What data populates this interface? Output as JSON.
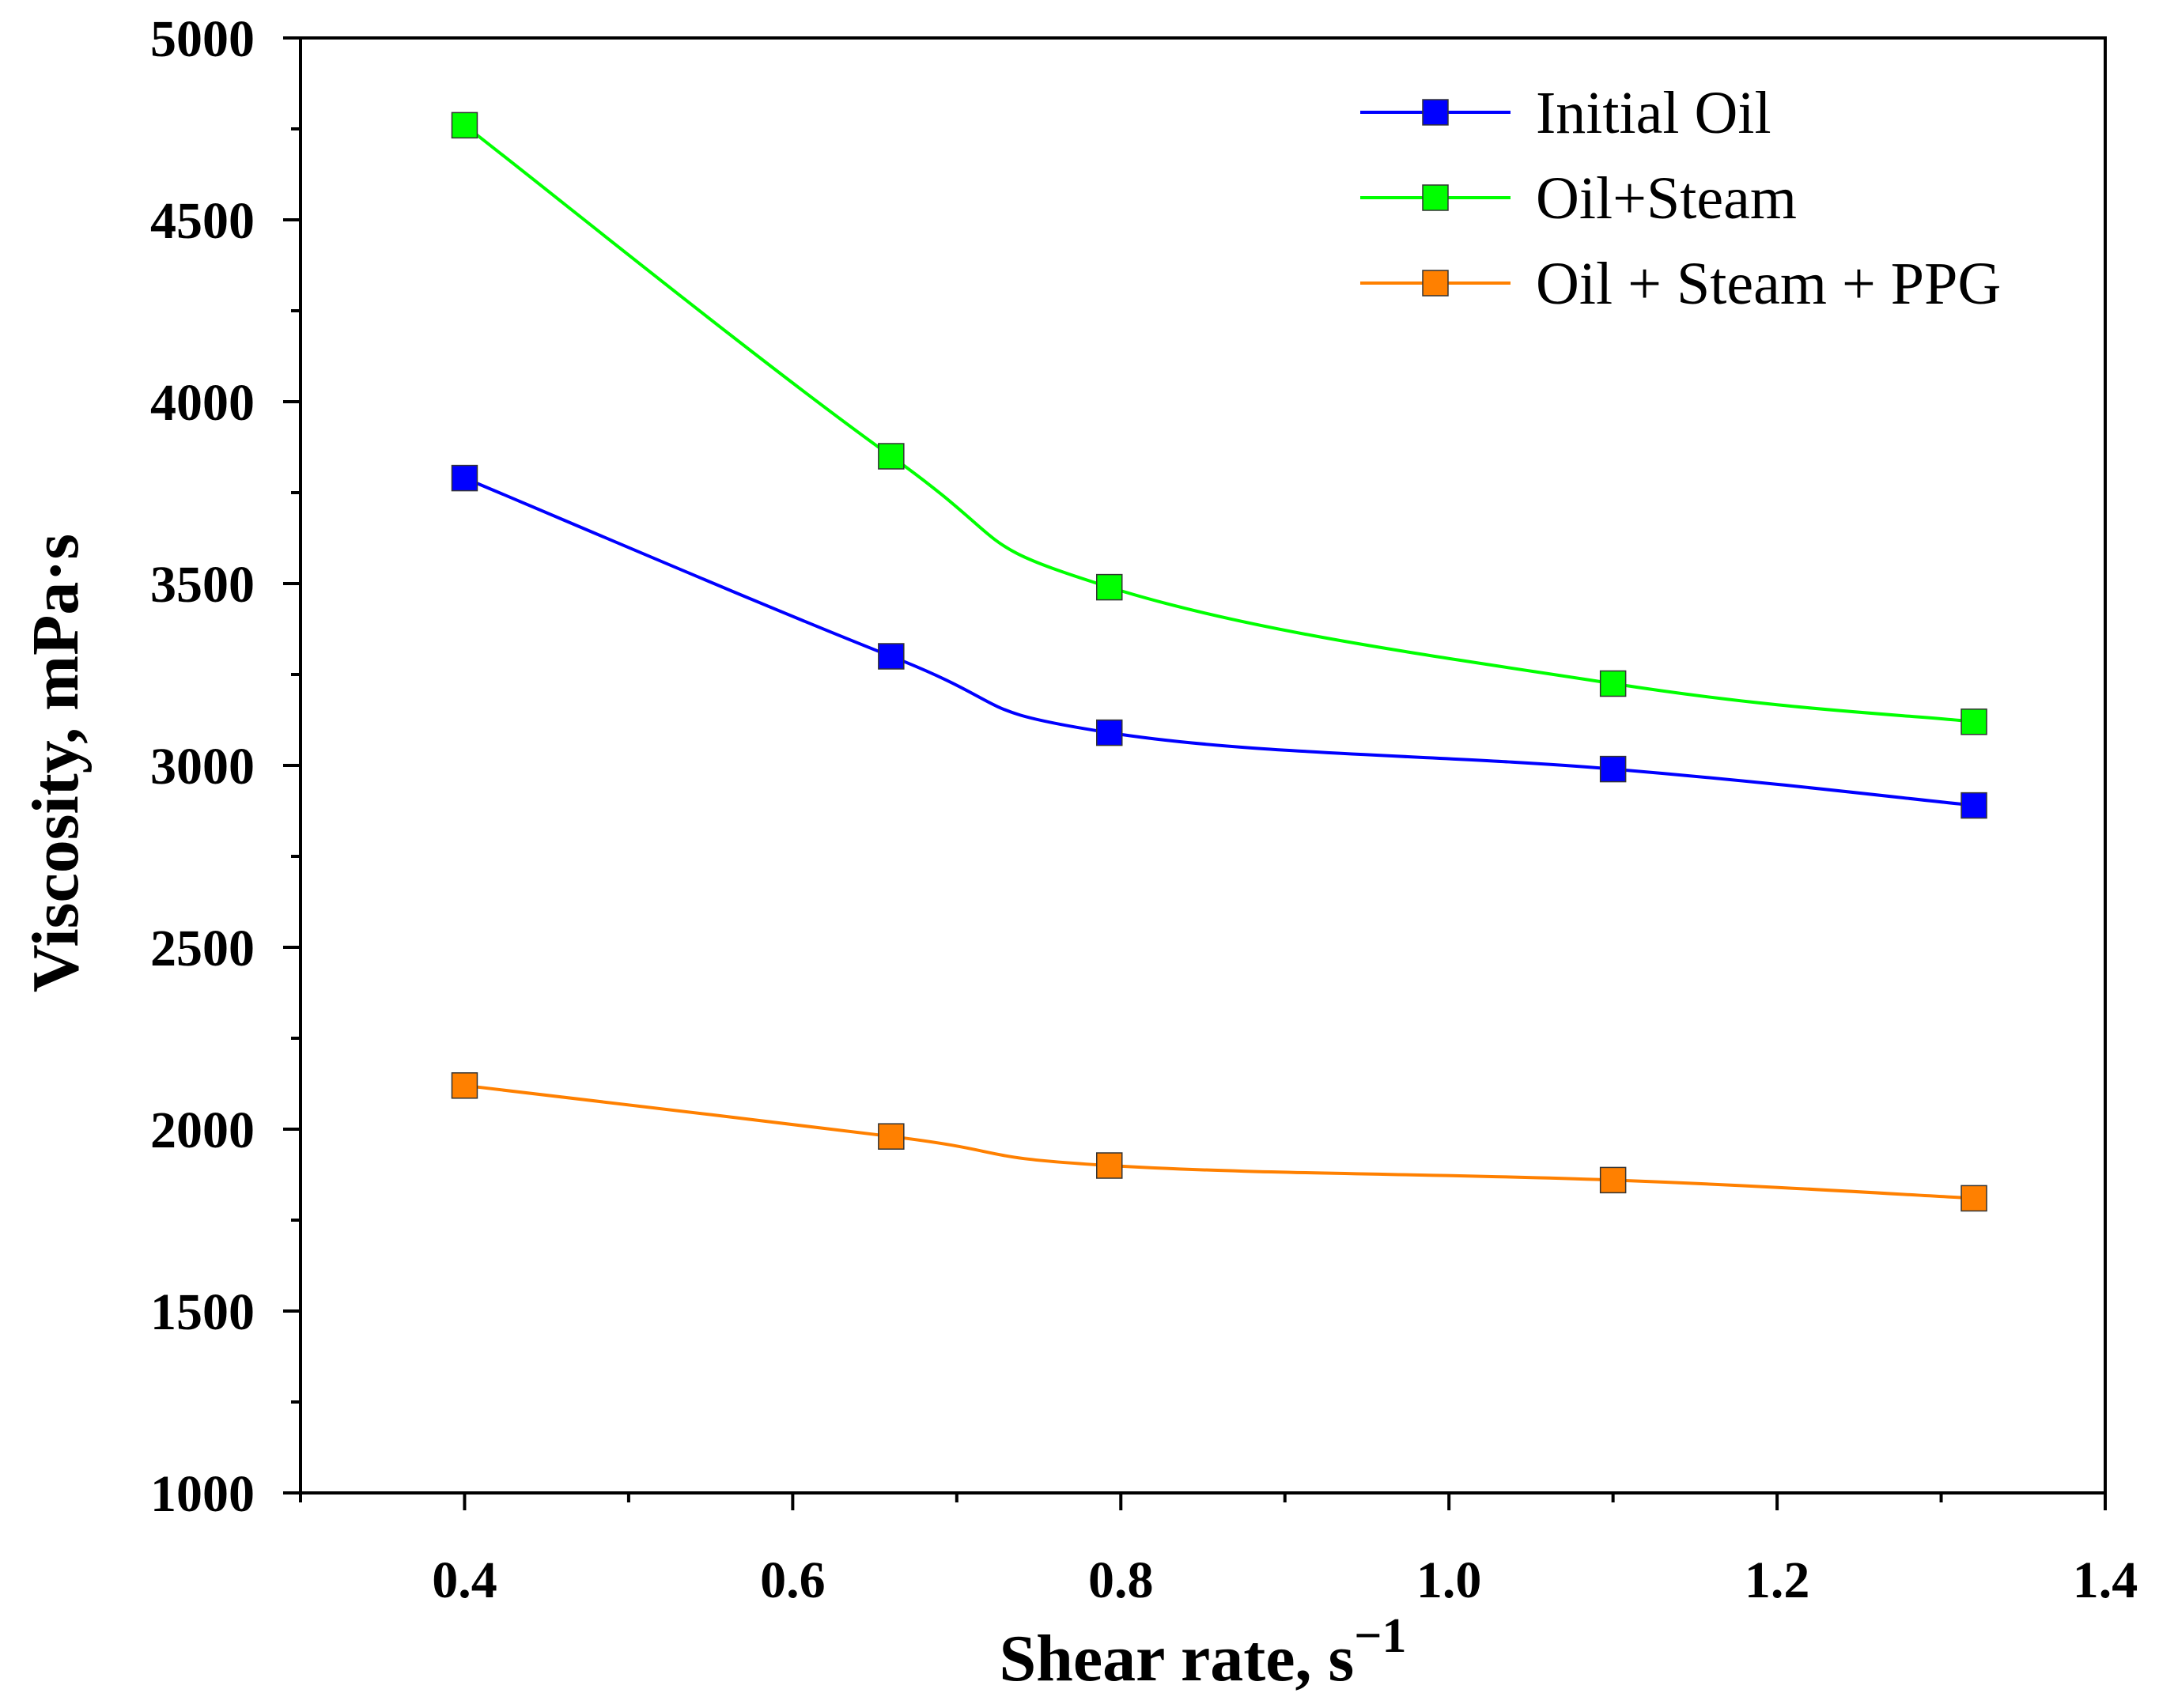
{
  "chart_data": {
    "type": "line",
    "title": "",
    "xlabel": "Shear rate, s",
    "xlabel_superscript": "−1",
    "ylabel": "Viscosity, mPa·s",
    "xlim": [
      0.3,
      1.4
    ],
    "ylim": [
      1000,
      5000
    ],
    "x_ticks": [
      "0.4",
      "0.6",
      "0.8",
      "1.0",
      "1.2",
      "1.4"
    ],
    "y_ticks": [
      "1000",
      "1500",
      "2000",
      "2500",
      "3000",
      "3500",
      "4000",
      "4500",
      "5000"
    ],
    "grid": false,
    "legend_position": "top-right",
    "x": [
      0.4,
      0.66,
      0.793,
      1.1,
      1.32
    ],
    "series": [
      {
        "name": "Initial Oil",
        "color": "#0000FF",
        "values": [
          3790,
          3300,
          3090,
          2990,
          2890
        ]
      },
      {
        "name": "Oil+Steam",
        "color": "#00FF00",
        "values": [
          4760,
          3850,
          3490,
          3225,
          3120
        ]
      },
      {
        "name": "Oil + Steam + PPG",
        "color": "#FF8000",
        "values": [
          2120,
          1980,
          1900,
          1860,
          1810
        ]
      }
    ]
  }
}
